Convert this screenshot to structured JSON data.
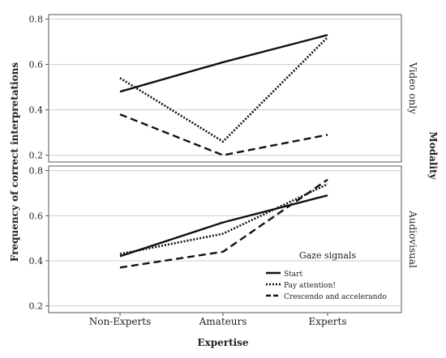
{
  "chart_data": {
    "type": "line",
    "xlabel": "Expertise",
    "ylabel": "Frequency of correct interpretations",
    "categories": [
      "Non-Experts",
      "Amateurs",
      "Experts"
    ],
    "facet_title": "Modality",
    "ylim": [
      0.17,
      0.82
    ],
    "yticks": [
      "0.2",
      "0.4",
      "0.6",
      "0.8"
    ],
    "grid": true,
    "panels": [
      {
        "label": "Video only",
        "series": [
          {
            "name": "Start",
            "values": [
              0.48,
              0.61,
              0.73
            ]
          },
          {
            "name": "Pay attention!",
            "values": [
              0.54,
              0.26,
              0.72
            ]
          },
          {
            "name": "Crescendo and accelerando",
            "values": [
              0.38,
              0.2,
              0.29
            ]
          }
        ]
      },
      {
        "label": "Audiovisual",
        "series": [
          {
            "name": "Start",
            "values": [
              0.42,
              0.57,
              0.69
            ]
          },
          {
            "name": "Pay attention!",
            "values": [
              0.43,
              0.52,
              0.74
            ]
          },
          {
            "name": "Crescendo and accelerando",
            "values": [
              0.37,
              0.44,
              0.76
            ]
          }
        ]
      }
    ],
    "legend": {
      "title": "Gaze signals",
      "placement": "bottom-right of lower panel",
      "entries": [
        "Start",
        "Pay attention!",
        "Crescendo and accelerando"
      ]
    },
    "line_styles": {
      "Start": "solid",
      "Pay attention!": "dotted",
      "Crescendo and accelerando": "dashed"
    },
    "colors": {
      "line": "#111111",
      "grid": "#cccccc",
      "frame": "#555555",
      "background": "#ffffff"
    }
  }
}
